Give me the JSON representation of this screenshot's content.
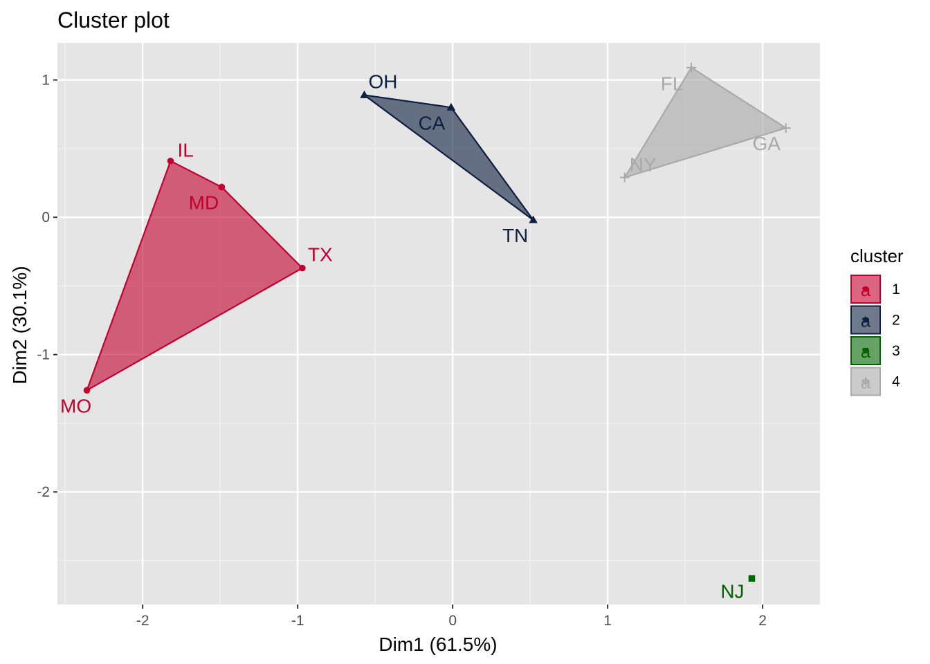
{
  "chart_data": {
    "type": "scatter",
    "title": "Cluster plot",
    "xlabel": "Dim1 (61.5%)",
    "ylabel": "Dim2 (30.1%)",
    "xlim": [
      -2.55,
      2.37
    ],
    "ylim": [
      -2.82,
      1.27
    ],
    "x_ticks": [
      -2,
      -1,
      0,
      1,
      2
    ],
    "x_tick_labels": [
      "-2",
      "-1",
      "0",
      "1",
      "2"
    ],
    "y_ticks": [
      -2,
      -1,
      0,
      1
    ],
    "y_tick_labels": [
      "-2",
      "-1",
      "0",
      "1"
    ],
    "grid": true,
    "legend": {
      "title": "cluster",
      "position": "right",
      "glyph_text": "a",
      "entries": [
        "1",
        "2",
        "3",
        "4"
      ]
    },
    "clusters": [
      {
        "name": "1",
        "color": "#C2002F",
        "fill": "#C2002F",
        "marker": "circle",
        "hull": [
          "IL",
          "MD",
          "TX",
          "MO"
        ],
        "points": [
          {
            "label": "IL",
            "x": -1.82,
            "y": 0.41
          },
          {
            "label": "MD",
            "x": -1.49,
            "y": 0.22
          },
          {
            "label": "TX",
            "x": -0.97,
            "y": -0.37
          },
          {
            "label": "MO",
            "x": -2.36,
            "y": -1.26
          }
        ]
      },
      {
        "name": "2",
        "color": "#0E1F3F",
        "fill": "#0E1F3F",
        "marker": "triangle",
        "hull": [
          "OH",
          "CA",
          "TN"
        ],
        "points": [
          {
            "label": "OH",
            "x": -0.57,
            "y": 0.89
          },
          {
            "label": "CA",
            "x": -0.01,
            "y": 0.8
          },
          {
            "label": "TN",
            "x": 0.52,
            "y": -0.02
          }
        ]
      },
      {
        "name": "3",
        "color": "#006400",
        "fill": "#006400",
        "marker": "square",
        "hull": [
          "NJ"
        ],
        "points": [
          {
            "label": "NJ",
            "x": 1.93,
            "y": -2.63
          }
        ]
      },
      {
        "name": "4",
        "color": "#A9A9A9",
        "fill": "#A9A9A9",
        "marker": "plus",
        "hull": [
          "FL",
          "GA",
          "NY"
        ],
        "points": [
          {
            "label": "FL",
            "x": 1.54,
            "y": 1.09
          },
          {
            "label": "GA",
            "x": 2.15,
            "y": 0.65
          },
          {
            "label": "NY",
            "x": 1.11,
            "y": 0.29
          }
        ]
      }
    ]
  },
  "colors": {
    "panel_background": "#E5E5E5",
    "grid_major": "#FFFFFF",
    "grid_minor": "#F2F2F2",
    "tick_text": "#4D4D4D"
  }
}
